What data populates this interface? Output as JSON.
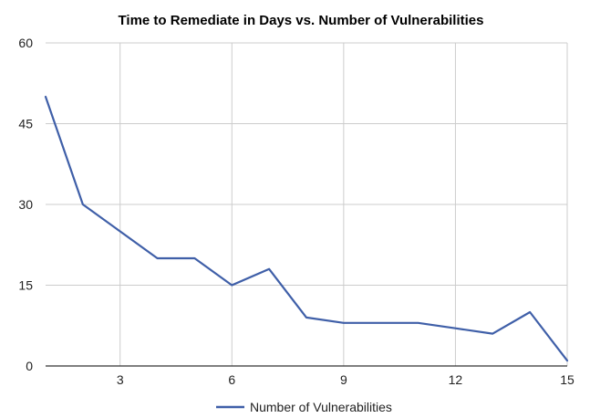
{
  "chart_data": {
    "type": "line",
    "title": "Time to Remediate in Days vs. Number of Vulnerabilities",
    "xlabel": "",
    "ylabel": "",
    "xlim": [
      1,
      15
    ],
    "ylim": [
      0,
      60
    ],
    "x_ticks": [
      3,
      6,
      9,
      12,
      15
    ],
    "y_ticks": [
      0,
      15,
      30,
      45,
      60
    ],
    "grid": true,
    "legend_position": "bottom",
    "series": [
      {
        "name": "Number of Vulnerabilities",
        "color": "#3f5fa8",
        "x": [
          1,
          2,
          3,
          4,
          5,
          6,
          7,
          8,
          9,
          10,
          11,
          12,
          13,
          14,
          15
        ],
        "y": [
          50,
          30,
          25,
          20,
          20,
          15,
          18,
          9,
          8,
          8,
          8,
          7,
          6,
          10,
          1
        ]
      }
    ]
  }
}
